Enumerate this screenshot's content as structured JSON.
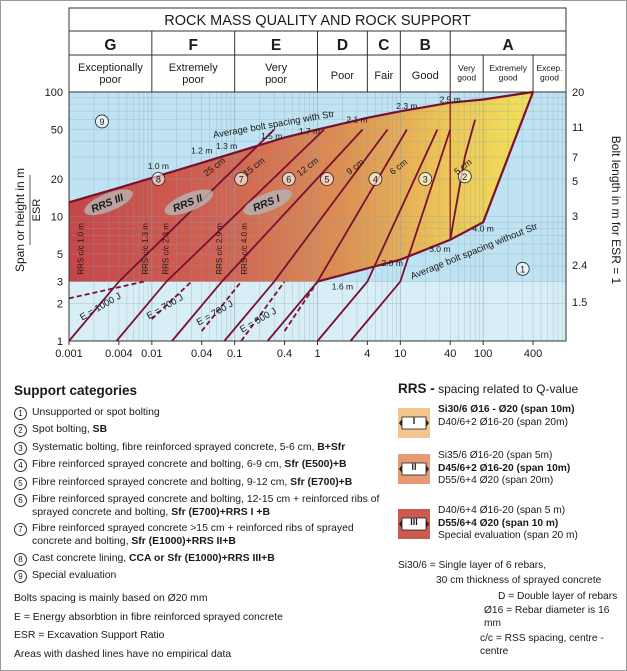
{
  "chart_data": {
    "type": "area",
    "title": "ROCK MASS QUALITY AND ROCK SUPPORT",
    "classes": [
      {
        "letter": "G",
        "name": "Exceptionally poor"
      },
      {
        "letter": "F",
        "name": "Extremely poor"
      },
      {
        "letter": "E",
        "name": "Very poor"
      },
      {
        "letter": "D",
        "name": "Poor"
      },
      {
        "letter": "C",
        "name": "Fair"
      },
      {
        "letter": "B",
        "name": "Good"
      },
      {
        "letter": "A",
        "name": "Very good"
      },
      {
        "letter": "A",
        "name": "Extremely good"
      },
      {
        "letter": "A",
        "name": "Excep. good"
      }
    ],
    "class_bounds_q": [
      0.001,
      0.01,
      0.1,
      1,
      4,
      10,
      40,
      100,
      400,
      1000
    ],
    "x": {
      "label": "",
      "scale": "log",
      "range": [
        0.001,
        1000
      ],
      "ticks": [
        "0.001",
        "0.004",
        "0.01",
        "0.04",
        "0.1",
        "0.4",
        "1",
        "4",
        "10",
        "40",
        "100",
        "400"
      ]
    },
    "y_left": {
      "label": "Span or height in m",
      "sublabel": "ESR",
      "scale": "log",
      "range": [
        1,
        100
      ],
      "ticks": [
        "1",
        "2",
        "3",
        "5",
        "10",
        "20",
        "50",
        "100"
      ]
    },
    "y_right": {
      "label": "Bolt length in m for ESR = 1",
      "ticks": [
        "1.5",
        "2.4",
        "3",
        "5",
        "7",
        "11",
        "20"
      ]
    },
    "zones": [
      "1",
      "2",
      "3",
      "4",
      "5",
      "6",
      "7",
      "8",
      "9"
    ],
    "lines": {
      "bolt_spacing_with_str": "Average bolt spacing with Str",
      "bolt_spacing_without_str": "Average bolt spacing without Str",
      "bolt_spacings_with": [
        "1.0 m",
        "1.2 m",
        "1.3 m",
        "1.5 m",
        "1.7 m",
        "2.1 m",
        "2.3 m",
        "2.5 m"
      ],
      "bolt_spacings_without": [
        "1.6 m",
        "2.0 m",
        "3.0 m",
        "4.0 m"
      ],
      "shotcrete_thickness": [
        "25 cm",
        "15 cm",
        "12 cm",
        "9 cm",
        "6 cm",
        "5 cm"
      ],
      "energy": [
        "E = 1000 J",
        "E = 700 J",
        "E = 700 J",
        "E = 500 J"
      ],
      "rrs_spacing": [
        "RRS c/c 1.0 m",
        "RRS c/c 1.3 m",
        "RRS c/c 2.3 m",
        "RRS c/c 2.9 m",
        "RRS c/c 4.0 m"
      ],
      "rrs_labels": [
        "RRS III",
        "RRS II",
        "RRS I"
      ]
    }
  },
  "legend": {
    "title": "Support categories",
    "items": [
      {
        "num": "1",
        "text": "Unsupported or spot bolting",
        "bold": ""
      },
      {
        "num": "2",
        "text": "Spot bolting, ",
        "bold": "SB"
      },
      {
        "num": "3",
        "text": "Systematic bolting, fibre reinforced sprayed concrete, 5-6 cm, ",
        "bold": "B+Sfr"
      },
      {
        "num": "4",
        "text": "Fibre reinforced sprayed concrete and bolting, 6-9 cm, ",
        "bold": "Sfr (E500)+B"
      },
      {
        "num": "5",
        "text": "Fibre reinforced sprayed concrete and bolting, 9-12 cm, ",
        "bold": "Sfr (E700)+B"
      },
      {
        "num": "6",
        "text": "Fibre reinforced sprayed concrete and bolting, 12-15 cm + reinforced ribs of sprayed concrete and bolting, ",
        "bold": "Sfr (E700)+RRS I +B"
      },
      {
        "num": "7",
        "text": "Fibre reinforced sprayed concrete >15 cm + reinforced ribs of sprayed concrete and bolting, ",
        "bold": "Sfr (E1000)+RRS II+B"
      },
      {
        "num": "8",
        "text": "Cast concrete lining, ",
        "bold": "CCA or Sfr (E1000)+RRS III+B"
      },
      {
        "num": "9",
        "text": "Special evaluation",
        "bold": ""
      }
    ]
  },
  "notes": [
    "Bolts spacing is mainly based on Ø20 mm",
    "E = Energy absorbtion in fibre reinforced sprayed concrete",
    "ESR = Excavation Support Ratio",
    "Areas with dashed lines have no empirical data"
  ],
  "rrs": {
    "title_bold": "RRS -",
    "title_rest": " spacing related to Q-value",
    "boxes": [
      {
        "label": "I",
        "color": "#f3c58e",
        "lines": [
          {
            "text": "Si30/6  Ø16 - Ø20 (span 10m)",
            "bold": true
          },
          {
            "text": "D40/6+2 Ø16-20 (span 20m)",
            "bold": false
          }
        ]
      },
      {
        "label": "II",
        "color": "#e79a73",
        "lines": [
          {
            "text": "Si35/6 Ø16-20 (span 5m)",
            "bold": false
          },
          {
            "text": "D45/6+2 Ø16-20 (span 10m)",
            "bold": true
          },
          {
            "text": "D55/6+4 Ø20 (span 20m)",
            "bold": false
          }
        ]
      },
      {
        "label": "III",
        "color": "#cd5a4f",
        "lines": [
          {
            "text": "D40/6+4 Ø16-20 (span 5 m)",
            "bold": false
          },
          {
            "text": "D55/6+4 Ø20 (span 10 m)",
            "bold": true
          },
          {
            "text": "Special evaluation (span 20 m)",
            "bold": false
          }
        ]
      }
    ],
    "definitions": [
      {
        "text": "Si30/6 = Single layer of 6 rebars,",
        "cls": ""
      },
      {
        "text": "30 cm thickness of sprayed concrete",
        "cls": "ind"
      },
      {
        "text": "D = Double layer of rebars",
        "cls": "c"
      },
      {
        "text": "Ø16 = Rebar diameter is 16 mm",
        "cls": "c2"
      },
      {
        "text": "c/c = RSS spacing, centre - centre",
        "cls": "c3"
      }
    ]
  }
}
